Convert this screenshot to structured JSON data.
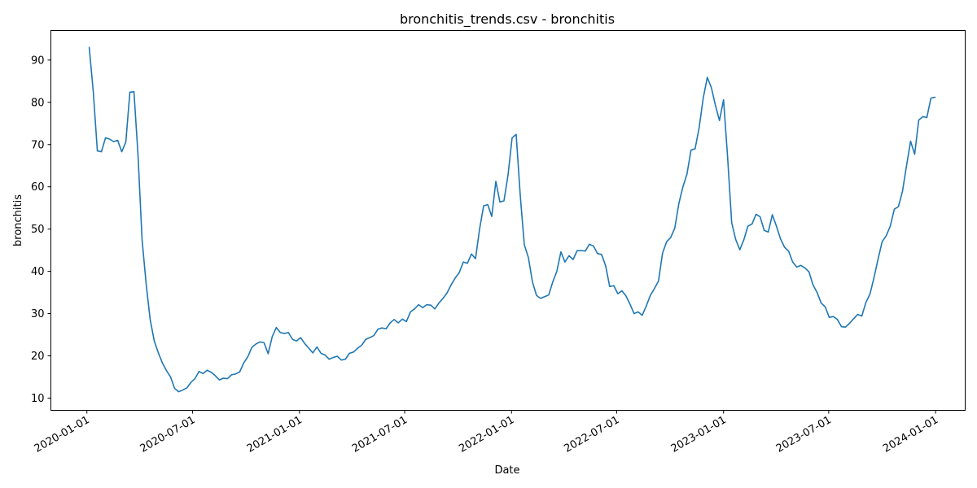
{
  "chart_data": {
    "type": "line",
    "title": "bronchitis_trends.csv - bronchitis",
    "xlabel": "Date",
    "ylabel": "bronchitis",
    "x_ticks": [
      "2020-01-01",
      "2020-07-01",
      "2021-01-01",
      "2021-07-01",
      "2022-01-01",
      "2022-07-01",
      "2023-01-01",
      "2023-07-01",
      "2024-01-01"
    ],
    "y_ticks": [
      10,
      20,
      30,
      40,
      50,
      60,
      70,
      80,
      90
    ],
    "xlim": [
      "2019-10-31",
      "2024-02-21"
    ],
    "ylim": [
      7.1,
      97
    ],
    "grid": false,
    "color": "#1f77b4",
    "series": [
      {
        "x": [
          "2020-01-05",
          "2020-01-12",
          "2020-01-19",
          "2020-01-26",
          "2020-02-02",
          "2020-02-09",
          "2020-02-16",
          "2020-02-23",
          "2020-03-01",
          "2020-03-08",
          "2020-03-15",
          "2020-03-22",
          "2020-03-29",
          "2020-04-05",
          "2020-04-12",
          "2020-04-19",
          "2020-04-26",
          "2020-05-03",
          "2020-05-10",
          "2020-05-17",
          "2020-05-24",
          "2020-05-31",
          "2020-06-07",
          "2020-06-14",
          "2020-06-21",
          "2020-06-28",
          "2020-07-05",
          "2020-07-12",
          "2020-07-19",
          "2020-07-26",
          "2020-08-02",
          "2020-08-09",
          "2020-08-16",
          "2020-08-23",
          "2020-08-30",
          "2020-09-06",
          "2020-09-13",
          "2020-09-20",
          "2020-09-27",
          "2020-10-04",
          "2020-10-11",
          "2020-10-18",
          "2020-10-25",
          "2020-11-01",
          "2020-11-08",
          "2020-11-15",
          "2020-11-22",
          "2020-11-29",
          "2020-12-06",
          "2020-12-13",
          "2020-12-20",
          "2020-12-27",
          "2021-01-03",
          "2021-01-10",
          "2021-01-17",
          "2021-01-24",
          "2021-01-31",
          "2021-02-07",
          "2021-02-14",
          "2021-02-21",
          "2021-02-28",
          "2021-03-07",
          "2021-03-14",
          "2021-03-21",
          "2021-03-28",
          "2021-04-04",
          "2021-04-11",
          "2021-04-18",
          "2021-04-25",
          "2021-05-02",
          "2021-05-09",
          "2021-05-16",
          "2021-05-23",
          "2021-05-30",
          "2021-06-06",
          "2021-06-13",
          "2021-06-20",
          "2021-06-27",
          "2021-07-04",
          "2021-07-11",
          "2021-07-18",
          "2021-07-25",
          "2021-08-01",
          "2021-08-08",
          "2021-08-15",
          "2021-08-22",
          "2021-08-29",
          "2021-09-05",
          "2021-09-12",
          "2021-09-19",
          "2021-09-26",
          "2021-10-03",
          "2021-10-10",
          "2021-10-17",
          "2021-10-24",
          "2021-10-31",
          "2021-11-07",
          "2021-11-14",
          "2021-11-21",
          "2021-11-28",
          "2021-12-05",
          "2021-12-12",
          "2021-12-19",
          "2021-12-26",
          "2022-01-02",
          "2022-01-09",
          "2022-01-16",
          "2022-01-23",
          "2022-01-30",
          "2022-02-06",
          "2022-02-13",
          "2022-02-20",
          "2022-02-27",
          "2022-03-06",
          "2022-03-13",
          "2022-03-20",
          "2022-03-27",
          "2022-04-03",
          "2022-04-10",
          "2022-04-17",
          "2022-04-24",
          "2022-05-01",
          "2022-05-08",
          "2022-05-15",
          "2022-05-22",
          "2022-05-29",
          "2022-06-05",
          "2022-06-12",
          "2022-06-19",
          "2022-06-26",
          "2022-07-03",
          "2022-07-10",
          "2022-07-17",
          "2022-07-24",
          "2022-07-31",
          "2022-08-07",
          "2022-08-14",
          "2022-08-21",
          "2022-08-28",
          "2022-09-04",
          "2022-09-11",
          "2022-09-18",
          "2022-09-25",
          "2022-10-02",
          "2022-10-09",
          "2022-10-16",
          "2022-10-23",
          "2022-10-30",
          "2022-11-06",
          "2022-11-13",
          "2022-11-20",
          "2022-11-27",
          "2022-12-04",
          "2022-12-11",
          "2022-12-18",
          "2022-12-25",
          "2023-01-01",
          "2023-01-08",
          "2023-01-15",
          "2023-01-22",
          "2023-01-29",
          "2023-02-05",
          "2023-02-12",
          "2023-02-19",
          "2023-02-26",
          "2023-03-05",
          "2023-03-12",
          "2023-03-19",
          "2023-03-26",
          "2023-04-02",
          "2023-04-09",
          "2023-04-16",
          "2023-04-23",
          "2023-04-30",
          "2023-05-07",
          "2023-05-14",
          "2023-05-21",
          "2023-05-28",
          "2023-06-04",
          "2023-06-11",
          "2023-06-18",
          "2023-06-25",
          "2023-07-02",
          "2023-07-09",
          "2023-07-16",
          "2023-07-23",
          "2023-07-30",
          "2023-08-06",
          "2023-08-13",
          "2023-08-20",
          "2023-08-27",
          "2023-09-03",
          "2023-09-10",
          "2023-09-17",
          "2023-09-24",
          "2023-10-01",
          "2023-10-08",
          "2023-10-15",
          "2023-10-22",
          "2023-10-29",
          "2023-11-05",
          "2023-11-12",
          "2023-11-19",
          "2023-11-26",
          "2023-12-03",
          "2023-12-10",
          "2023-12-17",
          "2023-12-24",
          "2023-12-31"
        ],
        "y": [
          93.0,
          82.5,
          68.5,
          68.3,
          71.6,
          71.3,
          70.7,
          71.0,
          68.3,
          70.6,
          82.4,
          82.5,
          67.5,
          47.5,
          37.0,
          28.5,
          23.5,
          20.7,
          18.3,
          16.5,
          15.0,
          12.3,
          11.5,
          11.9,
          12.4,
          13.7,
          14.6,
          16.3,
          15.8,
          16.6,
          16.1,
          15.3,
          14.3,
          14.7,
          14.6,
          15.5,
          15.7,
          16.2,
          18.3,
          19.8,
          22.0,
          22.8,
          23.3,
          23.1,
          20.5,
          24.5,
          26.7,
          25.5,
          25.3,
          25.5,
          23.9,
          23.5,
          24.3,
          22.9,
          21.8,
          20.7,
          22.1,
          20.6,
          20.2,
          19.2,
          19.6,
          19.9,
          19.0,
          19.2,
          20.6,
          20.9,
          21.8,
          22.5,
          23.9,
          24.3,
          24.8,
          26.3,
          26.6,
          26.4,
          27.8,
          28.6,
          27.8,
          28.7,
          28.1,
          30.4,
          31.1,
          32.1,
          31.4,
          32.1,
          32.0,
          31.1,
          32.5,
          33.6,
          34.9,
          36.8,
          38.4,
          39.7,
          42.2,
          41.9,
          44.1,
          43.0,
          50.0,
          55.5,
          55.8,
          53.0,
          61.3,
          56.4,
          56.7,
          62.8,
          71.6,
          72.4,
          58.0,
          46.3,
          43.3,
          37.5,
          34.3,
          33.6,
          34.0,
          34.4,
          37.5,
          40.0,
          44.6,
          42.2,
          43.7,
          42.8,
          44.9,
          44.9,
          44.8,
          46.4,
          46.0,
          44.2,
          44.0,
          41.3,
          36.4,
          36.6,
          34.7,
          35.4,
          34.2,
          32.2,
          30.0,
          30.4,
          29.6,
          31.8,
          34.3,
          35.9,
          37.7,
          44.3,
          47.0,
          48.0,
          50.2,
          56.0,
          60.0,
          63.0,
          68.7,
          69.0,
          74.0,
          81.0,
          85.9,
          83.5,
          79.3,
          75.7,
          80.6,
          67.0,
          51.5,
          47.5,
          45.1,
          47.5,
          50.7,
          51.2,
          53.5,
          52.9,
          49.7,
          49.3,
          53.4,
          50.7,
          47.7,
          45.7,
          44.8,
          42.2,
          41.0,
          41.4,
          40.8,
          39.9,
          36.8,
          35.0,
          32.5,
          31.6,
          29.1,
          29.3,
          28.6,
          26.9,
          26.8,
          27.7,
          28.8,
          29.8,
          29.4,
          32.6,
          34.6,
          38.5,
          42.9,
          47.0,
          48.4,
          50.7,
          54.7,
          55.3,
          58.9,
          65.0,
          70.8,
          67.7,
          75.8,
          76.6,
          76.4,
          81.0,
          81.2
        ]
      }
    ]
  }
}
